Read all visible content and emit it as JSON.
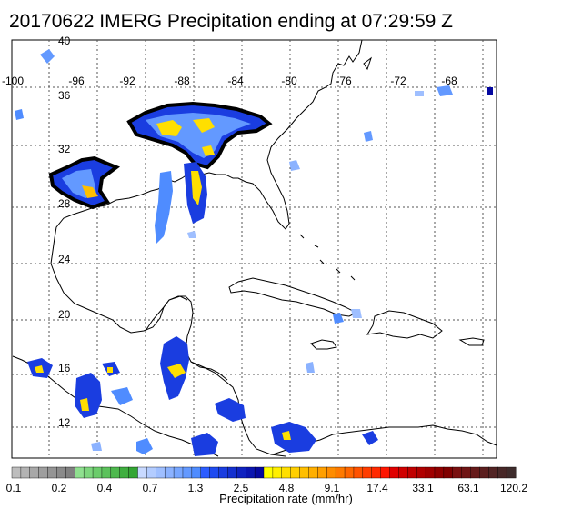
{
  "title": "20170622 IMERG Precipitation ending at 07:29:59 Z",
  "map": {
    "lon_labels": [
      "-100",
      "-96",
      "-92",
      "-88",
      "-84",
      "-80",
      "-76",
      "-72",
      "-68"
    ],
    "lat_labels": [
      "40",
      "36",
      "32",
      "28",
      "24",
      "20",
      "16",
      "12"
    ],
    "gridlines": true,
    "land_color": "#ffffff",
    "ocean_color": "#ffffff"
  },
  "colorbar": {
    "label": "Precipitation rate (mm/hr)",
    "tick_labels": [
      "0.1",
      "0.2",
      "0.4",
      "0.7",
      "1.3",
      "2.5",
      "4.8",
      "9.1",
      "17.4",
      "33.1",
      "63.1",
      "120.2"
    ],
    "colors": [
      "#bdbdbd",
      "#b3b3b3",
      "#a8a8a8",
      "#9e9e9e",
      "#949494",
      "#8a8a8a",
      "#808080",
      "#8fe08f",
      "#7dd67d",
      "#6bcc6b",
      "#5cc25c",
      "#4db84d",
      "#3fae3f",
      "#33a533",
      "#c8d9ff",
      "#b3ccff",
      "#9fbfff",
      "#8bb2ff",
      "#77a6ff",
      "#6399ff",
      "#4f8cff",
      "#2b5cff",
      "#1f4bf0",
      "#1a3de0",
      "#1430d0",
      "#0f22c0",
      "#0a15b0",
      "#0508a0",
      "#ffff00",
      "#ffef00",
      "#ffdf00",
      "#ffcf00",
      "#ffbf00",
      "#ffaf00",
      "#ff9f00",
      "#ff8c00",
      "#ff7a00",
      "#ff6600",
      "#ff5200",
      "#ff3d00",
      "#ff2900",
      "#ff1500",
      "#e00000",
      "#d00000",
      "#c00000",
      "#b00000",
      "#a00000",
      "#900000",
      "#800000",
      "#7a1010",
      "#701515",
      "#661a1a",
      "#5c1f1f",
      "#522424",
      "#482828",
      "#3e2c2c"
    ]
  }
}
